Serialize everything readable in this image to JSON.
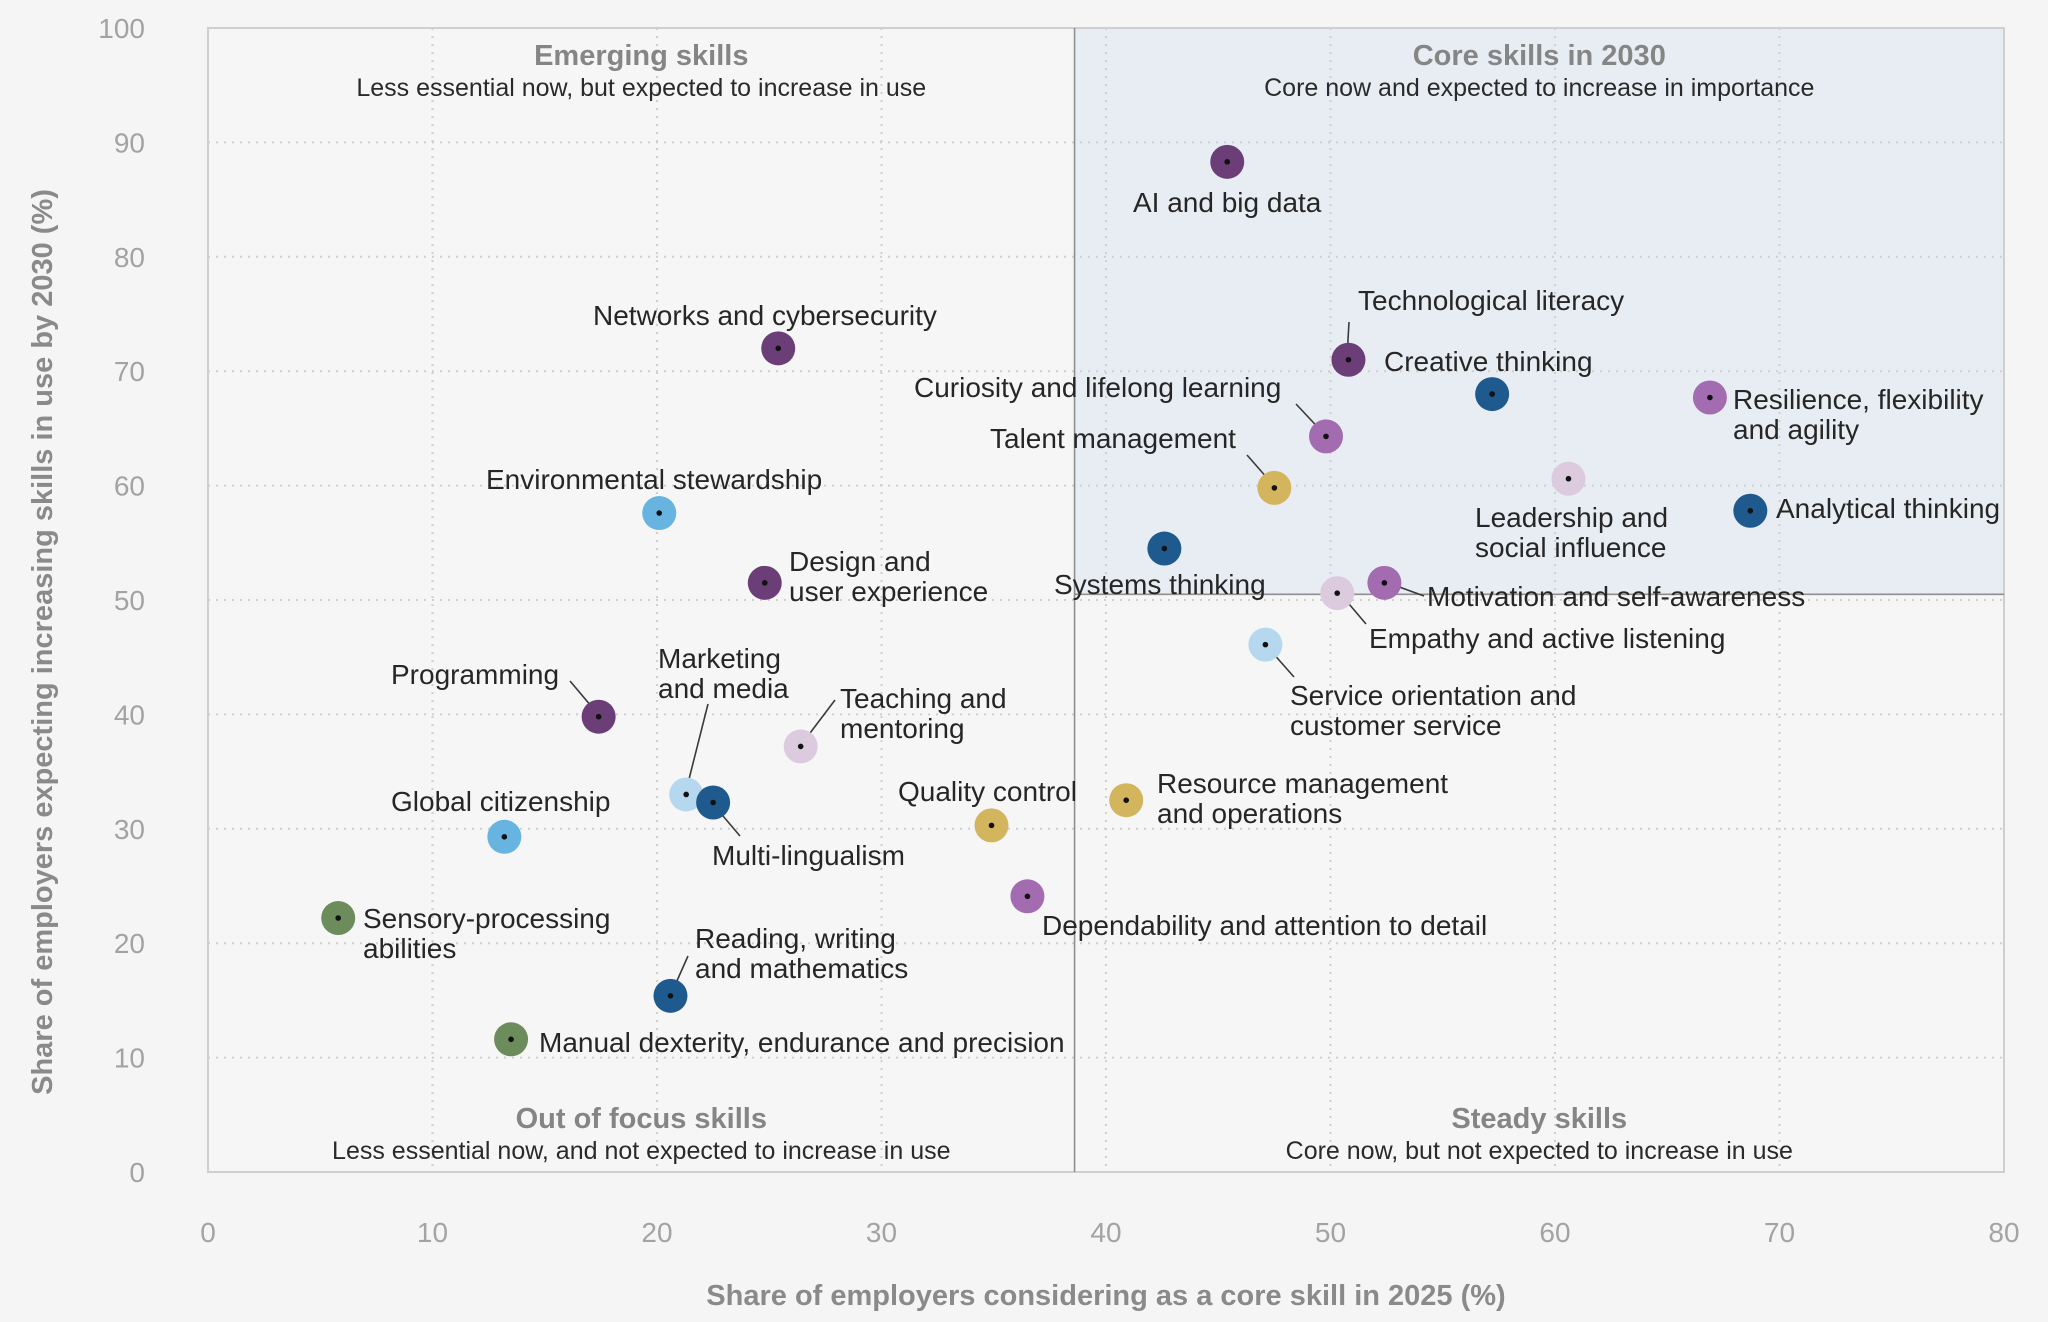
{
  "chart_data": {
    "type": "scatter",
    "xlabel": "Share of employers considering as a core skill in 2025 (%)",
    "ylabel": "Share of employers expecting increasing skills in use by 2030 (%)",
    "xlim": [
      0,
      80
    ],
    "ylim": [
      0,
      100
    ],
    "xticks": [
      "0",
      "10",
      "20",
      "30",
      "40",
      "50",
      "60",
      "70",
      "80"
    ],
    "yticks": [
      "0",
      "10",
      "20",
      "30",
      "40",
      "50",
      "60",
      "70",
      "80",
      "90",
      "100"
    ],
    "grid": true,
    "dividers": {
      "x": 38.6,
      "y": 50.5
    },
    "quadrants": [
      {
        "id": "emerging",
        "title": "Emerging skills",
        "subtitle": "Less essential now, but expected to increase in use",
        "position": "top-left"
      },
      {
        "id": "core",
        "title": "Core skills in 2030",
        "subtitle": "Core now and expected to increase in importance",
        "position": "top-right",
        "fill": "#e8edf3"
      },
      {
        "id": "out",
        "title": "Out of focus skills",
        "subtitle": "Less essential now, and not expected to increase in use",
        "position": "bottom-left"
      },
      {
        "id": "steady",
        "title": "Steady skills",
        "subtitle": "Core now, but not expected to increase in use",
        "position": "bottom-right"
      }
    ],
    "palette": {
      "dark-purple": "#6b3e77",
      "purple": "#a36bb0",
      "light-purple": "#dccbdf",
      "dark-blue": "#1f5a8e",
      "light-blue": "#67b4e1",
      "pale-blue": "#b5d8ee",
      "gold": "#d3b55e",
      "green": "#6c8c5c"
    },
    "points": [
      {
        "name": "AI and big data",
        "lines": [
          "AI and big data"
        ],
        "x": 45.4,
        "y": 88.3,
        "color": "dark-purple"
      },
      {
        "name": "Networks and cybersecurity",
        "lines": [
          "Networks and cybersecurity"
        ],
        "x": 25.4,
        "y": 72.0,
        "color": "dark-purple"
      },
      {
        "name": "Technological literacy",
        "lines": [
          "Technological literacy"
        ],
        "x": 50.8,
        "y": 71.0,
        "color": "dark-purple"
      },
      {
        "name": "Creative thinking",
        "lines": [
          "Creative thinking"
        ],
        "x": 57.2,
        "y": 68.0,
        "color": "dark-blue"
      },
      {
        "name": "Resilience, flexibility and agility",
        "lines": [
          "Resilience, flexibility",
          "and agility"
        ],
        "x": 66.9,
        "y": 67.7,
        "color": "purple"
      },
      {
        "name": "Curiosity and lifelong learning",
        "lines": [
          "Curiosity and lifelong learning"
        ],
        "x": 49.8,
        "y": 64.3,
        "color": "purple"
      },
      {
        "name": "Talent management",
        "lines": [
          "Talent management"
        ],
        "x": 47.5,
        "y": 59.8,
        "color": "gold"
      },
      {
        "name": "Leadership and social influence",
        "lines": [
          "Leadership and",
          "social influence"
        ],
        "x": 60.6,
        "y": 60.6,
        "color": "light-purple"
      },
      {
        "name": "Analytical thinking",
        "lines": [
          "Analytical thinking"
        ],
        "x": 68.7,
        "y": 57.8,
        "color": "dark-blue"
      },
      {
        "name": "Environmental stewardship",
        "lines": [
          "Environmental stewardship"
        ],
        "x": 20.1,
        "y": 57.6,
        "color": "light-blue"
      },
      {
        "name": "Systems thinking",
        "lines": [
          "Systems thinking"
        ],
        "x": 42.6,
        "y": 54.5,
        "color": "dark-blue"
      },
      {
        "name": "Design and user experience",
        "lines": [
          "Design and",
          "user experience"
        ],
        "x": 24.8,
        "y": 51.5,
        "color": "dark-purple"
      },
      {
        "name": "Motivation and self-awareness",
        "lines": [
          "Motivation and self-awareness"
        ],
        "x": 52.4,
        "y": 51.5,
        "color": "purple"
      },
      {
        "name": "Empathy and active listening",
        "lines": [
          "Empathy and active listening"
        ],
        "x": 50.3,
        "y": 50.6,
        "color": "light-purple"
      },
      {
        "name": "Service orientation and customer service",
        "lines": [
          "Service orientation and",
          "customer service"
        ],
        "x": 47.1,
        "y": 46.1,
        "color": "pale-blue"
      },
      {
        "name": "Programming",
        "lines": [
          "Programming"
        ],
        "x": 17.4,
        "y": 39.8,
        "color": "dark-purple"
      },
      {
        "name": "Teaching and mentoring",
        "lines": [
          "Teaching and",
          "mentoring"
        ],
        "x": 26.4,
        "y": 37.2,
        "color": "light-purple"
      },
      {
        "name": "Marketing and media",
        "lines": [
          "Marketing",
          "and media"
        ],
        "x": 21.3,
        "y": 33.0,
        "color": "pale-blue"
      },
      {
        "name": "Multi-lingualism",
        "lines": [
          "Multi-lingualism"
        ],
        "x": 22.5,
        "y": 32.3,
        "color": "dark-blue"
      },
      {
        "name": "Resource management and operations",
        "lines": [
          "Resource management",
          "and operations"
        ],
        "x": 40.9,
        "y": 32.5,
        "color": "gold"
      },
      {
        "name": "Quality control",
        "lines": [
          "Quality control"
        ],
        "x": 34.9,
        "y": 30.3,
        "color": "gold"
      },
      {
        "name": "Global citizenship",
        "lines": [
          "Global citizenship"
        ],
        "x": 13.2,
        "y": 29.3,
        "color": "light-blue"
      },
      {
        "name": "Dependability and attention to detail",
        "lines": [
          "Dependability and attention to detail"
        ],
        "x": 36.5,
        "y": 24.1,
        "color": "purple"
      },
      {
        "name": "Sensory-processing abilities",
        "lines": [
          "Sensory-processing",
          "abilities"
        ],
        "x": 5.8,
        "y": 22.2,
        "color": "green"
      },
      {
        "name": "Reading, writing and mathematics",
        "lines": [
          "Reading, writing",
          "and mathematics"
        ],
        "x": 20.6,
        "y": 15.4,
        "color": "dark-blue"
      },
      {
        "name": "Manual dexterity, endurance and precision",
        "lines": [
          "Manual dexterity, endurance and precision"
        ],
        "x": 13.5,
        "y": 11.6,
        "color": "green"
      }
    ]
  }
}
